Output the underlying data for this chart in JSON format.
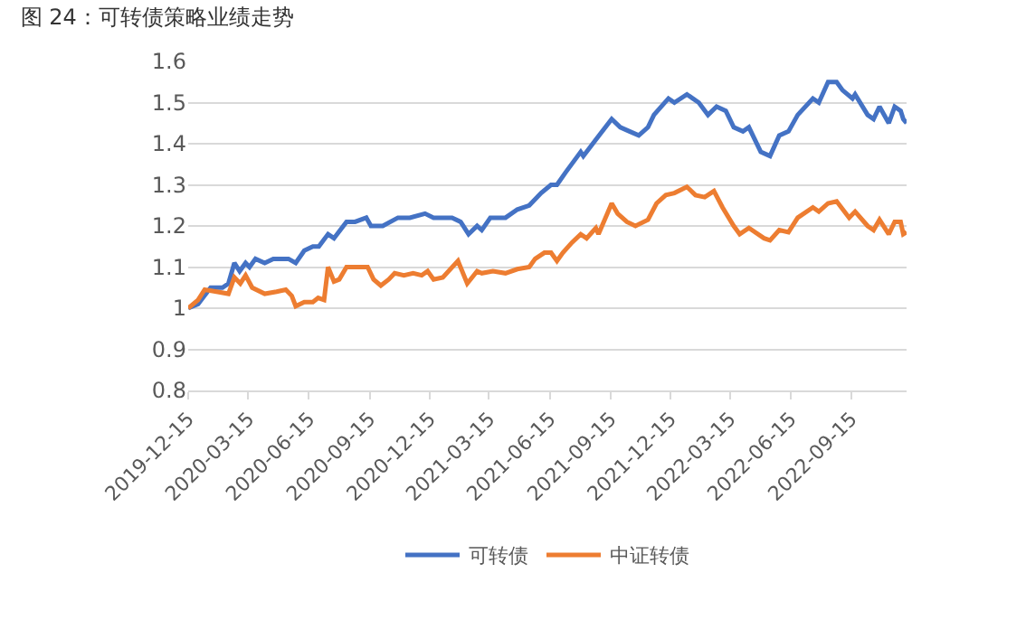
{
  "chart_data": {
    "type": "line",
    "title": "图 24：可转债策略业绩走势",
    "xlim": [
      "2019-12-15",
      "2022-12-08"
    ],
    "xticks": [
      "2019-12-15",
      "2020-03-15",
      "2020-06-15",
      "2020-09-15",
      "2020-12-15",
      "2021-03-15",
      "2021-06-15",
      "2021-09-15",
      "2021-12-15",
      "2022-03-15",
      "2022-06-15",
      "2022-09-15"
    ],
    "ylim": [
      0.8,
      1.6
    ],
    "yticks": [
      0.8,
      0.9,
      1,
      1.1,
      1.2,
      1.3,
      1.4,
      1.5,
      1.6
    ],
    "grid": "y",
    "legend": "bottom",
    "marker": "none",
    "line_style": "solid",
    "series": [
      {
        "name": "可转债",
        "color": "#4472c4",
        "x": [
          "2019-12-15",
          "2019-12-30",
          "2020-01-18",
          "2020-02-05",
          "2020-02-14",
          "2020-02-23",
          "2020-03-02",
          "2020-03-11",
          "2020-03-17",
          "2020-03-26",
          "2020-04-09",
          "2020-04-22",
          "2020-05-15",
          "2020-05-26",
          "2020-06-08",
          "2020-06-21",
          "2020-06-30",
          "2020-07-14",
          "2020-07-23",
          "2020-08-11",
          "2020-08-24",
          "2020-09-10",
          "2020-09-17",
          "2020-10-05",
          "2020-10-28",
          "2020-11-15",
          "2020-12-08",
          "2020-12-21",
          "2021-01-18",
          "2021-01-31",
          "2021-02-12",
          "2021-02-25",
          "2021-03-04",
          "2021-03-17",
          "2021-04-09",
          "2021-04-27",
          "2021-05-15",
          "2021-06-02",
          "2021-06-17",
          "2021-06-26",
          "2021-07-09",
          "2021-08-01",
          "2021-08-05",
          "2021-08-24",
          "2021-09-17",
          "2021-09-30",
          "2021-10-14",
          "2021-10-28",
          "2021-11-11",
          "2021-11-20",
          "2021-12-12",
          "2021-12-21",
          "2022-01-09",
          "2022-01-27",
          "2022-02-10",
          "2022-02-23",
          "2022-03-09",
          "2022-03-21",
          "2022-04-04",
          "2022-04-13",
          "2022-05-01",
          "2022-05-15",
          "2022-05-29",
          "2022-06-12",
          "2022-06-26",
          "2022-07-19",
          "2022-07-28",
          "2022-08-11",
          "2022-08-24",
          "2022-09-02",
          "2022-09-17",
          "2022-09-21",
          "2022-10-10",
          "2022-10-19",
          "2022-10-28",
          "2022-11-11",
          "2022-11-20",
          "2022-11-29",
          "2022-12-03",
          "2022-12-08"
        ],
        "values": [
          1.0,
          1.01,
          1.05,
          1.05,
          1.06,
          1.11,
          1.09,
          1.11,
          1.1,
          1.12,
          1.11,
          1.12,
          1.12,
          1.11,
          1.14,
          1.15,
          1.15,
          1.18,
          1.17,
          1.21,
          1.21,
          1.22,
          1.2,
          1.2,
          1.22,
          1.22,
          1.23,
          1.22,
          1.22,
          1.21,
          1.18,
          1.2,
          1.19,
          1.22,
          1.22,
          1.24,
          1.25,
          1.28,
          1.3,
          1.3,
          1.33,
          1.38,
          1.37,
          1.41,
          1.46,
          1.44,
          1.43,
          1.42,
          1.44,
          1.47,
          1.51,
          1.5,
          1.52,
          1.5,
          1.47,
          1.49,
          1.48,
          1.44,
          1.43,
          1.44,
          1.38,
          1.37,
          1.42,
          1.43,
          1.47,
          1.51,
          1.5,
          1.55,
          1.55,
          1.53,
          1.51,
          1.52,
          1.47,
          1.46,
          1.49,
          1.45,
          1.49,
          1.48,
          1.46,
          1.45
        ]
      },
      {
        "name": "中证转债",
        "color": "#ed7d31",
        "x": [
          "2019-12-15",
          "2019-12-30",
          "2020-01-09",
          "2020-01-27",
          "2020-02-14",
          "2020-02-23",
          "2020-03-03",
          "2020-03-11",
          "2020-03-21",
          "2020-04-09",
          "2020-04-27",
          "2020-05-11",
          "2020-05-20",
          "2020-05-26",
          "2020-06-08",
          "2020-06-21",
          "2020-06-29",
          "2020-07-08",
          "2020-07-14",
          "2020-07-23",
          "2020-07-31",
          "2020-08-11",
          "2020-08-24",
          "2020-09-12",
          "2020-09-21",
          "2020-10-02",
          "2020-10-14",
          "2020-10-23",
          "2020-11-06",
          "2020-11-20",
          "2020-12-03",
          "2020-12-12",
          "2020-12-21",
          "2021-01-04",
          "2021-01-27",
          "2021-02-10",
          "2021-02-25",
          "2021-03-04",
          "2021-03-21",
          "2021-04-09",
          "2021-04-27",
          "2021-05-15",
          "2021-05-24",
          "2021-06-07",
          "2021-06-17",
          "2021-06-26",
          "2021-07-05",
          "2021-07-19",
          "2021-08-01",
          "2021-08-10",
          "2021-08-24",
          "2021-08-28",
          "2021-09-17",
          "2021-09-26",
          "2021-10-10",
          "2021-10-23",
          "2021-11-11",
          "2021-11-24",
          "2021-12-08",
          "2021-12-21",
          "2022-01-09",
          "2022-01-22",
          "2022-02-05",
          "2022-02-19",
          "2022-03-04",
          "2022-03-21",
          "2022-03-30",
          "2022-04-13",
          "2022-05-06",
          "2022-05-15",
          "2022-05-29",
          "2022-06-12",
          "2022-06-26",
          "2022-07-19",
          "2022-07-28",
          "2022-08-11",
          "2022-08-24",
          "2022-09-12",
          "2022-09-21",
          "2022-10-10",
          "2022-10-19",
          "2022-10-28",
          "2022-11-11",
          "2022-11-20",
          "2022-11-29",
          "2022-12-03",
          "2022-12-08"
        ],
        "values": [
          1.0,
          1.02,
          1.045,
          1.04,
          1.035,
          1.075,
          1.06,
          1.08,
          1.05,
          1.035,
          1.04,
          1.045,
          1.03,
          1.005,
          1.015,
          1.015,
          1.025,
          1.02,
          1.1,
          1.065,
          1.07,
          1.1,
          1.1,
          1.1,
          1.07,
          1.055,
          1.07,
          1.085,
          1.08,
          1.085,
          1.08,
          1.09,
          1.07,
          1.075,
          1.115,
          1.06,
          1.09,
          1.085,
          1.09,
          1.085,
          1.095,
          1.1,
          1.12,
          1.135,
          1.135,
          1.115,
          1.135,
          1.16,
          1.18,
          1.17,
          1.195,
          1.18,
          1.255,
          1.23,
          1.21,
          1.2,
          1.215,
          1.255,
          1.275,
          1.28,
          1.295,
          1.275,
          1.27,
          1.285,
          1.245,
          1.2,
          1.18,
          1.195,
          1.17,
          1.165,
          1.19,
          1.185,
          1.22,
          1.245,
          1.235,
          1.255,
          1.26,
          1.22,
          1.235,
          1.2,
          1.19,
          1.215,
          1.18,
          1.21,
          1.21,
          1.18,
          1.185
        ]
      }
    ]
  }
}
